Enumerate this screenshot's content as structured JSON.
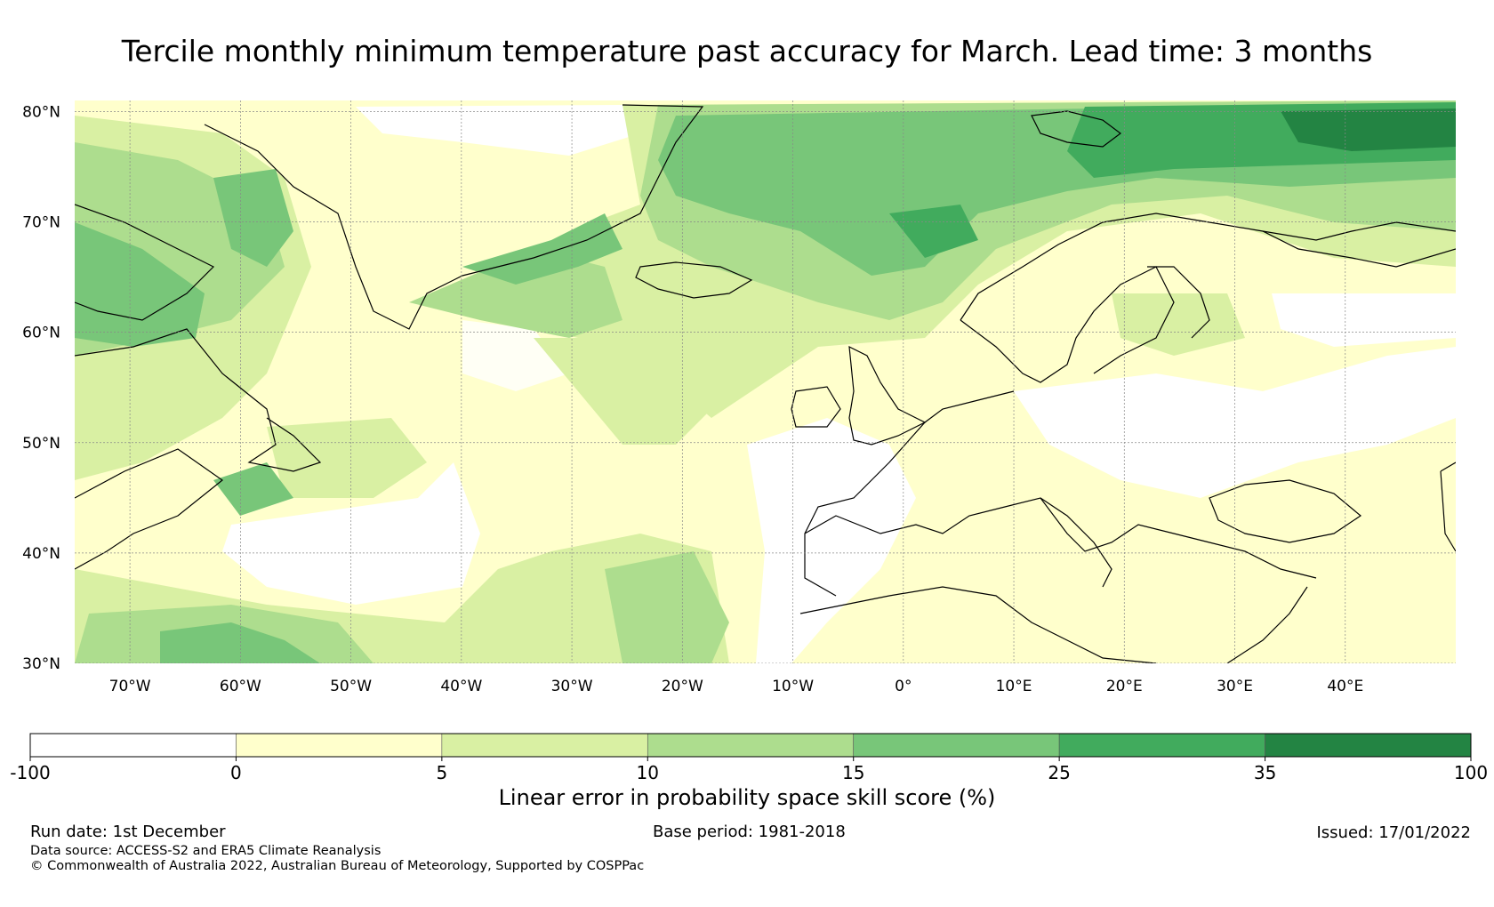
{
  "title": "Tercile monthly minimum temperature past accuracy for March. Lead time: 3 months",
  "map": {
    "lat_labels": [
      "80°N",
      "70°N",
      "60°N",
      "50°N",
      "40°N",
      "30°N"
    ],
    "lat_values": [
      80,
      70,
      60,
      50,
      40,
      30
    ],
    "lon_labels": [
      "70°W",
      "60°W",
      "50°W",
      "40°W",
      "30°W",
      "20°W",
      "10°W",
      "0°",
      "10°E",
      "20°E",
      "30°E",
      "40°E"
    ],
    "lon_values": [
      -70,
      -60,
      -50,
      -40,
      -30,
      -20,
      -10,
      0,
      10,
      20,
      30,
      40
    ],
    "extent": {
      "lon_min": -75,
      "lon_max": 50,
      "lat_min": 30,
      "lat_max": 81
    }
  },
  "colorbar": {
    "boundaries": [
      "-100",
      "0",
      "5",
      "10",
      "15",
      "25",
      "35",
      "100"
    ],
    "colors": [
      "#ffffff",
      "#ffffcc",
      "#d9f0a3",
      "#addd8e",
      "#78c679",
      "#41ab5d",
      "#238443"
    ],
    "label": "Linear error in probability space skill score (%)"
  },
  "footer": {
    "run_date": "Run date: 1st December",
    "base_period": "Base period: 1981-2018",
    "issued": "Issued: 17/01/2022",
    "data_source": "Data source: ACCESS-S2 and ERA5 Climate Reanalysis",
    "copyright": "© Commonwealth of Australia 2022, Australian Bureau of Meteorology, Supported by COSPPac"
  }
}
